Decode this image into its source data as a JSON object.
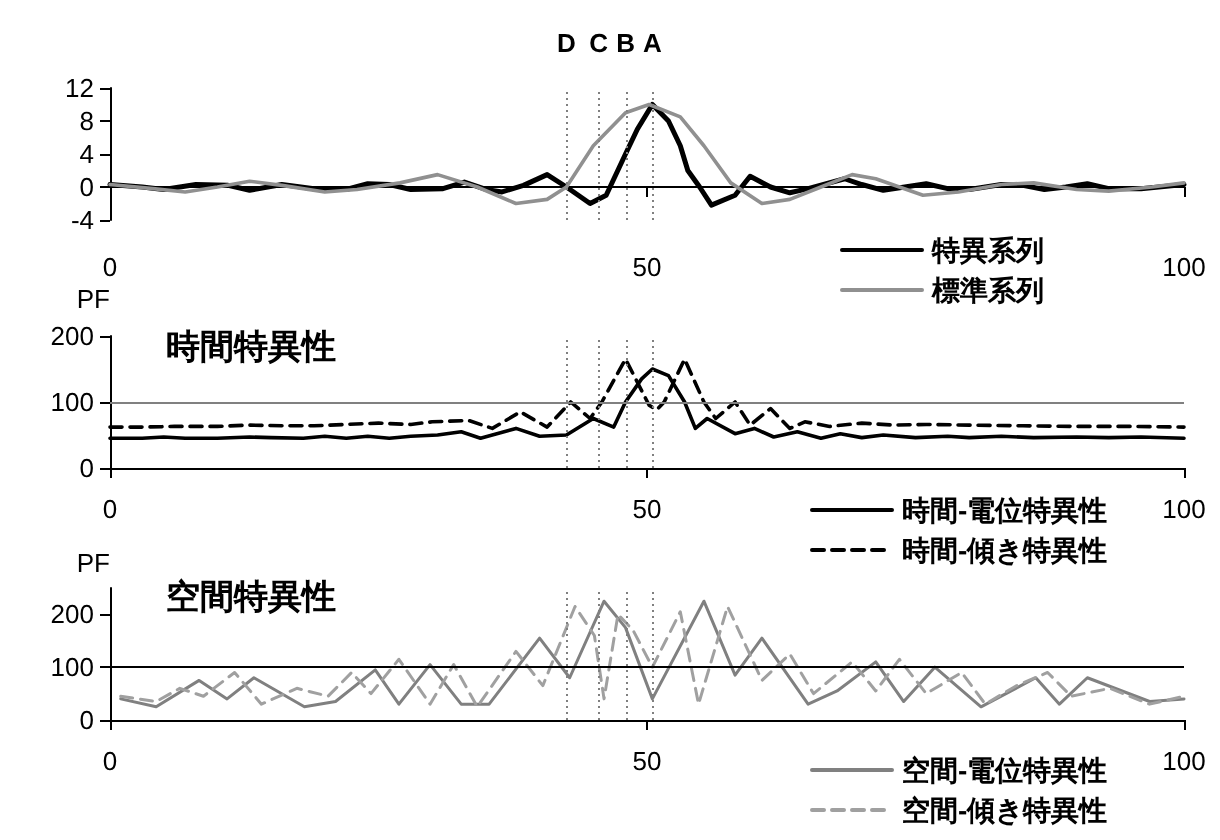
{
  "chart_data": [
    {
      "type": "line",
      "xlim": [
        0,
        100
      ],
      "xticks": [
        0,
        50,
        100
      ],
      "ylim": [
        -4,
        12
      ],
      "yticks": [
        -4,
        0,
        4,
        8,
        12
      ],
      "grid": false,
      "legend": "bottom right",
      "ref_lines": [
        {
          "axis": "x",
          "value": 42.5,
          "label": "D",
          "color": "#808080",
          "line_style": "dotted"
        },
        {
          "axis": "x",
          "value": 45.5,
          "label": "C",
          "color": "#808080",
          "line_style": "dotted"
        },
        {
          "axis": "x",
          "value": 48,
          "label": "B",
          "color": "#808080",
          "line_style": "dotted"
        },
        {
          "axis": "x",
          "value": 50.5,
          "label": "A",
          "color": "#808080",
          "line_style": "dotted"
        }
      ],
      "series": [
        {
          "name": "特異系列",
          "color": "#000000",
          "x": [
            0,
            3,
            5,
            8,
            11,
            13,
            16,
            19,
            22,
            24,
            26,
            28,
            31,
            33,
            35,
            36.5,
            38.5,
            40.7,
            42.5,
            44.7,
            46.2,
            48,
            49.1,
            50.5,
            52,
            53.1,
            53.8,
            54.9,
            56,
            58.2,
            59.6,
            61.5,
            63.3,
            65,
            68.4,
            70,
            72,
            74,
            76,
            78,
            80,
            83,
            85,
            87,
            89,
            91,
            93,
            96,
            100
          ],
          "values": [
            0.3,
            0,
            -0.3,
            0.3,
            0.2,
            -0.4,
            0.3,
            -0.2,
            -0.3,
            0.4,
            0.3,
            -0.3,
            -0.2,
            0.6,
            -0.3,
            -0.6,
            0.2,
            1.5,
            0,
            -2,
            -1,
            4,
            7,
            10,
            8,
            5,
            2,
            0,
            -2.2,
            -1,
            1.3,
            0,
            -0.7,
            -0.2,
            1,
            0.3,
            -0.4,
            0,
            0.4,
            -0.2,
            -0.3,
            0.3,
            0.2,
            -0.3,
            0,
            0.4,
            -0.2,
            -0.2,
            0.3
          ]
        },
        {
          "name": "標準系列",
          "color": "#909090",
          "x": [
            0,
            4,
            7,
            10,
            13,
            16,
            20,
            23,
            27,
            30.5,
            34.2,
            37.8,
            40.7,
            42.5,
            45,
            48,
            50.2,
            53.1,
            55.3,
            57.8,
            60.7,
            63.3,
            66.2,
            69.1,
            71.3,
            75.7,
            79,
            83,
            86,
            90,
            93,
            97,
            100
          ],
          "values": [
            0.3,
            -0.2,
            -0.6,
            0,
            0.7,
            0.2,
            -0.6,
            -0.3,
            0.5,
            1.5,
            0,
            -2,
            -1.5,
            0,
            5,
            9,
            10,
            8.5,
            5,
            0.5,
            -2,
            -1.5,
            0,
            1.5,
            1,
            -1,
            -0.6,
            0.3,
            0.5,
            -0.3,
            -0.5,
            0,
            0.5
          ]
        }
      ]
    },
    {
      "type": "line",
      "title": "時間特異性",
      "ylabel": "PF",
      "xlim": [
        0,
        100
      ],
      "xticks": [
        0,
        50,
        100
      ],
      "ylim": [
        0,
        200
      ],
      "yticks": [
        0,
        100,
        200
      ],
      "grid": false,
      "legend": "bottom right",
      "ref_lines": [
        {
          "axis": "y",
          "value": 100,
          "label": null,
          "color": "#808080",
          "line_style": "solid"
        },
        {
          "axis": "x",
          "value": 42.5,
          "label": null,
          "color": "#808080",
          "line_style": "dotted"
        },
        {
          "axis": "x",
          "value": 45.5,
          "label": null,
          "color": "#808080",
          "line_style": "dotted"
        },
        {
          "axis": "x",
          "value": 48,
          "label": null,
          "color": "#808080",
          "line_style": "dotted"
        },
        {
          "axis": "x",
          "value": 50.5,
          "label": null,
          "color": "#808080",
          "line_style": "dotted"
        }
      ],
      "series": [
        {
          "name": "時間-電位特異性",
          "color": "#000000",
          "line_style": "solid",
          "x": [
            0,
            3,
            5,
            7,
            10,
            13,
            15,
            18,
            20,
            22,
            24,
            26,
            28,
            30.5,
            32.7,
            34.5,
            37.8,
            40,
            42.5,
            45,
            46.9,
            48,
            49.5,
            50.5,
            52,
            53.5,
            54.5,
            55.6,
            58.2,
            60,
            61.8,
            64,
            66.2,
            68,
            70,
            72,
            75,
            78,
            80,
            83,
            86,
            90,
            93,
            96,
            100
          ],
          "values": [
            45,
            45,
            47,
            45,
            45,
            47,
            46,
            45,
            48,
            45,
            48,
            45,
            48,
            50,
            55,
            45,
            60,
            48,
            50,
            75,
            62,
            100,
            135,
            150,
            140,
            100,
            60,
            75,
            52,
            60,
            47,
            55,
            45,
            52,
            46,
            50,
            46,
            48,
            46,
            48,
            46,
            47,
            46,
            47,
            45
          ]
        },
        {
          "name": "時間-傾き特異性",
          "color": "#000000",
          "line_style": "dashed",
          "x": [
            0,
            3,
            6,
            10,
            13,
            16,
            19,
            22,
            25,
            28,
            30,
            33.4,
            35.6,
            38.2,
            40.7,
            42.9,
            44.7,
            45.8,
            48,
            49.1,
            50.2,
            50.9,
            51.6,
            53.5,
            55.3,
            56.4,
            58.2,
            59.6,
            61.5,
            63.3,
            64.7,
            67,
            70,
            73,
            76,
            80,
            85,
            90,
            95,
            100
          ],
          "values": [
            62,
            62,
            63,
            63,
            65,
            64,
            64,
            66,
            68,
            66,
            70,
            72,
            60,
            85,
            62,
            100,
            75,
            100,
            165,
            130,
            95,
            88,
            100,
            165,
            100,
            75,
            100,
            65,
            90,
            60,
            70,
            63,
            68,
            65,
            66,
            65,
            64,
            63,
            63,
            62
          ]
        }
      ]
    },
    {
      "type": "line",
      "title": "空間特異性",
      "ylabel": "PF",
      "xlim": [
        0,
        100
      ],
      "xticks": [
        0,
        50,
        100
      ],
      "ylim": [
        0,
        250
      ],
      "yticks": [
        0,
        100,
        200
      ],
      "grid": false,
      "legend": "bottom right",
      "ref_lines": [
        {
          "axis": "y",
          "value": 100,
          "label": null,
          "color": "#000000",
          "line_style": "solid"
        },
        {
          "axis": "x",
          "value": 42.5,
          "label": null,
          "color": "#808080",
          "line_style": "dotted"
        },
        {
          "axis": "x",
          "value": 45.5,
          "label": null,
          "color": "#808080",
          "line_style": "dotted"
        },
        {
          "axis": "x",
          "value": 48,
          "label": null,
          "color": "#808080",
          "line_style": "dotted"
        },
        {
          "axis": "x",
          "value": 50.5,
          "label": null,
          "color": "#808080",
          "line_style": "dotted"
        }
      ],
      "series": [
        {
          "name": "空間-電位特異性",
          "color": "#808080",
          "line_style": "solid",
          "x": [
            1,
            4.3,
            8.3,
            10.9,
            13.4,
            18.1,
            21,
            24.7,
            26.9,
            29.8,
            32.7,
            35.3,
            40,
            42.8,
            46,
            48,
            50.5,
            55.3,
            58.2,
            60.7,
            65,
            67.7,
            71.3,
            73.9,
            76.8,
            81.1,
            86.2,
            88.4,
            91,
            96.8,
            100
          ],
          "values": [
            40,
            25,
            75,
            40,
            80,
            25,
            35,
            95,
            30,
            105,
            30,
            30,
            155,
            80,
            225,
            175,
            40,
            225,
            85,
            155,
            30,
            55,
            110,
            35,
            100,
            25,
            80,
            30,
            80,
            35,
            40
          ]
        },
        {
          "name": "空間-傾き特異性",
          "color": "#a0a0a0",
          "line_style": "dashed",
          "x": [
            1,
            4.3,
            6.5,
            8.7,
            11.6,
            14.1,
            17.4,
            20.3,
            22.5,
            24.3,
            26.9,
            29.8,
            32,
            34.2,
            37.8,
            40.3,
            43.3,
            45.1,
            46,
            47.3,
            48.7,
            50.5,
            53.1,
            54.8,
            57.5,
            60.7,
            63.3,
            65.5,
            69.1,
            71.3,
            73.5,
            76,
            79.3,
            81.5,
            84.4,
            87.3,
            89.5,
            93.1,
            96.8,
            100
          ],
          "values": [
            45,
            35,
            60,
            45,
            90,
            30,
            60,
            45,
            90,
            50,
            115,
            30,
            105,
            25,
            130,
            65,
            215,
            160,
            40,
            200,
            170,
            100,
            205,
            30,
            215,
            75,
            125,
            50,
            110,
            55,
            115,
            50,
            90,
            30,
            65,
            90,
            45,
            60,
            30,
            45
          ]
        }
      ]
    }
  ]
}
